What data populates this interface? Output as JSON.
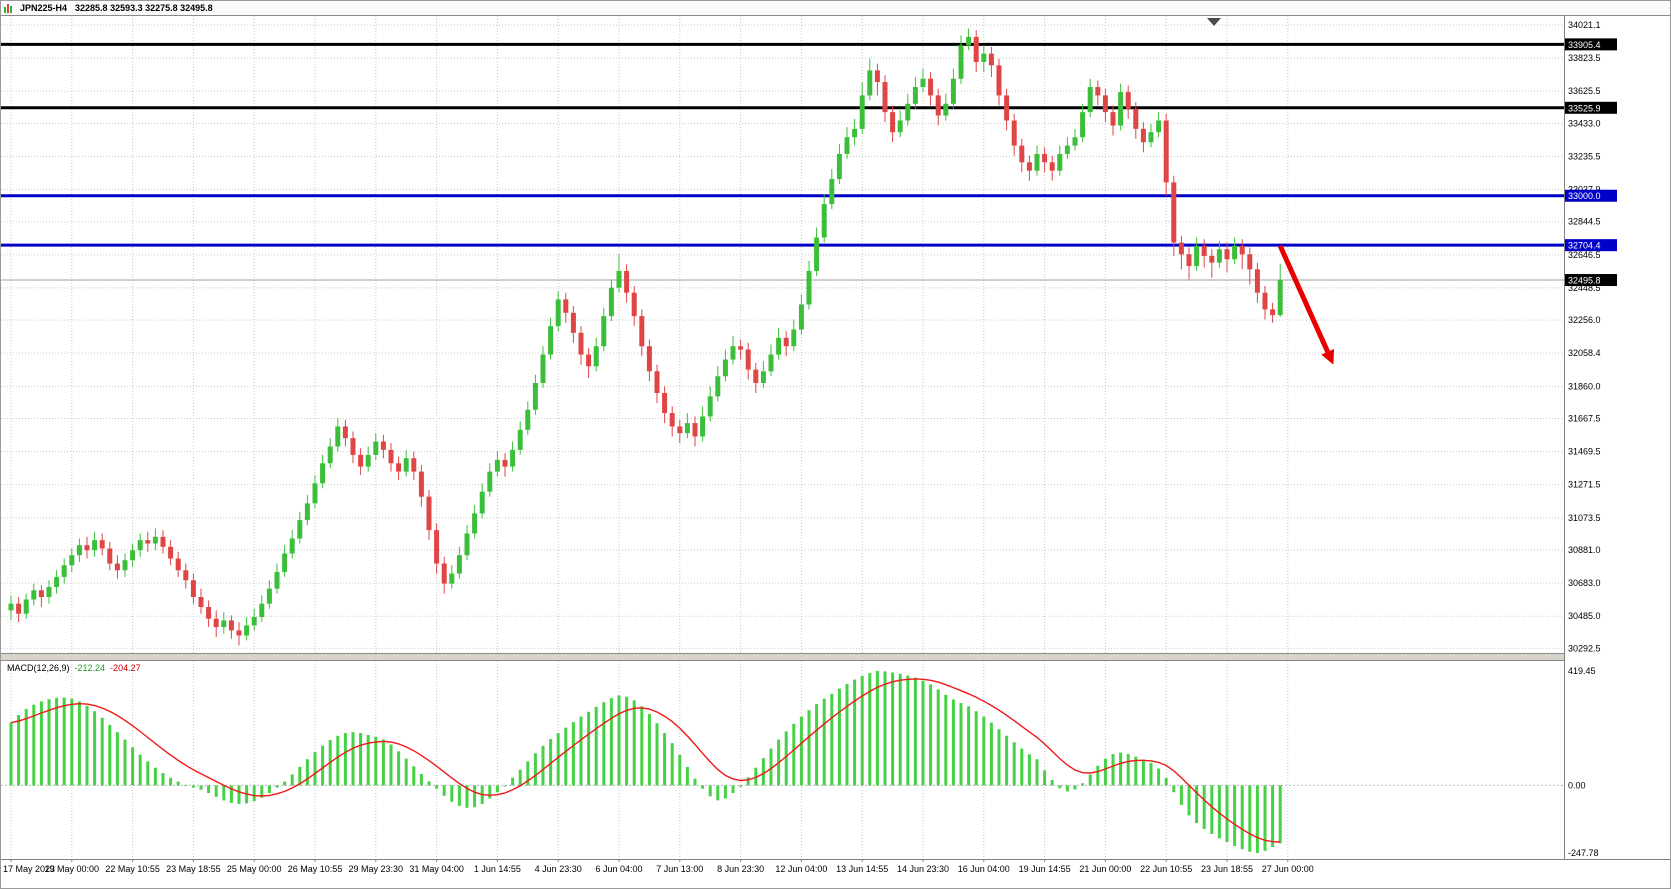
{
  "header": {
    "symbol_timeframe": "JPN225-H4",
    "ohlc_text": "32285.8 32593.3 32275.8 32495.8"
  },
  "macd_label": {
    "name": "MACD(12,26,9)",
    "macd_value": "-212.24",
    "signal_value": "-204.27"
  },
  "colors": {
    "bull": "#3bbf3b",
    "bear": "#e04545",
    "grid": "#c8c8c8",
    "level_black": "#000000",
    "level_blue": "#0000c8",
    "current_line": "#a0a0a0",
    "macd_hist": "#46d146",
    "macd_signal": "#f01818",
    "arrow": "#e80000"
  },
  "chart_data": {
    "type": "candlestick",
    "symbol": "JPN225",
    "timeframe": "H4",
    "price_axis": {
      "ticks": [
        "34021.1",
        "33823.5",
        "33625.5",
        "33433.0",
        "33235.5",
        "33037.9",
        "32844.5",
        "32646.5",
        "32448.5",
        "32256.0",
        "32058.4",
        "31860.0",
        "31667.5",
        "31469.5",
        "31271.5",
        "31073.5",
        "30881.0",
        "30683.0",
        "30485.0",
        "30292.5"
      ],
      "levels": [
        {
          "value": 33905.4,
          "label": "33905.4",
          "color": "#000000"
        },
        {
          "value": 33525.9,
          "label": "33525.9",
          "color": "#000000"
        },
        {
          "value": 33000.0,
          "label": "33000.0",
          "color": "#0000c8"
        },
        {
          "value": 32704.4,
          "label": "32704.4",
          "color": "#0000c8"
        }
      ],
      "current_price": 32495.8,
      "current_label": "32495.8"
    },
    "time_axis": {
      "candles_per_tick": 8,
      "labels": [
        "17 May 2023",
        "19 May 00:00",
        "22 May 10:55",
        "23 May 18:55",
        "25 May 00:00",
        "26 May 10:55",
        "29 May 23:30",
        "31 May 04:00",
        "1 Jun 14:55",
        "4 Jun 23:30",
        "6 Jun 04:00",
        "7 Jun 13:00",
        "8 Jun 23:30",
        "12 Jun 04:00",
        "13 Jun 14:55",
        "14 Jun 23:30",
        "16 Jun 04:00",
        "19 Jun 14:55",
        "21 Jun 00:00",
        "22 Jun 10:55",
        "23 Jun 18:55",
        "27 Jun 00:00"
      ]
    },
    "candles": [
      [
        30520,
        30610,
        30460,
        30560
      ],
      [
        30560,
        30600,
        30450,
        30500
      ],
      [
        30500,
        30620,
        30470,
        30585
      ],
      [
        30585,
        30680,
        30550,
        30640
      ],
      [
        30640,
        30670,
        30540,
        30600
      ],
      [
        30600,
        30700,
        30560,
        30660
      ],
      [
        30660,
        30760,
        30620,
        30720
      ],
      [
        30720,
        30830,
        30680,
        30790
      ],
      [
        30790,
        30890,
        30750,
        30850
      ],
      [
        30850,
        30950,
        30810,
        30910
      ],
      [
        30910,
        30960,
        30830,
        30880
      ],
      [
        30880,
        30990,
        30840,
        30940
      ],
      [
        30940,
        30980,
        30850,
        30890
      ],
      [
        30890,
        30930,
        30760,
        30800
      ],
      [
        30800,
        30850,
        30710,
        30760
      ],
      [
        30760,
        30860,
        30720,
        30820
      ],
      [
        30820,
        30920,
        30780,
        30880
      ],
      [
        30880,
        30980,
        30840,
        30940
      ],
      [
        30940,
        30990,
        30870,
        30920
      ],
      [
        30920,
        31010,
        30880,
        30960
      ],
      [
        30960,
        31000,
        30860,
        30900
      ],
      [
        30900,
        30940,
        30790,
        30830
      ],
      [
        30830,
        30870,
        30720,
        30760
      ],
      [
        30760,
        30800,
        30650,
        30700
      ],
      [
        30700,
        30740,
        30560,
        30600
      ],
      [
        30600,
        30650,
        30500,
        30540
      ],
      [
        30540,
        30580,
        30420,
        30470
      ],
      [
        30470,
        30520,
        30360,
        30420
      ],
      [
        30420,
        30510,
        30380,
        30460
      ],
      [
        30460,
        30490,
        30350,
        30400
      ],
      [
        30400,
        30450,
        30310,
        30370
      ],
      [
        30370,
        30480,
        30340,
        30430
      ],
      [
        30430,
        30530,
        30400,
        30480
      ],
      [
        30480,
        30610,
        30450,
        30560
      ],
      [
        30560,
        30700,
        30530,
        30650
      ],
      [
        30650,
        30800,
        30620,
        30750
      ],
      [
        30750,
        30910,
        30720,
        30860
      ],
      [
        30860,
        31000,
        30830,
        30950
      ],
      [
        30950,
        31110,
        30920,
        31060
      ],
      [
        31060,
        31210,
        31030,
        31160
      ],
      [
        31160,
        31330,
        31130,
        31280
      ],
      [
        31280,
        31450,
        31250,
        31400
      ],
      [
        31400,
        31550,
        31370,
        31500
      ],
      [
        31500,
        31670,
        31470,
        31620
      ],
      [
        31620,
        31660,
        31500,
        31550
      ],
      [
        31550,
        31590,
        31400,
        31450
      ],
      [
        31450,
        31490,
        31330,
        31380
      ],
      [
        31380,
        31500,
        31350,
        31450
      ],
      [
        31450,
        31580,
        31420,
        31530
      ],
      [
        31530,
        31570,
        31430,
        31480
      ],
      [
        31480,
        31520,
        31350,
        31400
      ],
      [
        31400,
        31440,
        31300,
        31350
      ],
      [
        31350,
        31480,
        31320,
        31430
      ],
      [
        31430,
        31470,
        31300,
        31350
      ],
      [
        31350,
        31390,
        31140,
        31200
      ],
      [
        31200,
        31240,
        30940,
        31000
      ],
      [
        31000,
        31040,
        30740,
        30800
      ],
      [
        30800,
        30840,
        30620,
        30680
      ],
      [
        30680,
        30790,
        30650,
        30740
      ],
      [
        30740,
        30900,
        30710,
        30850
      ],
      [
        30850,
        31030,
        30820,
        30980
      ],
      [
        30980,
        31150,
        30950,
        31100
      ],
      [
        31100,
        31280,
        31070,
        31230
      ],
      [
        31230,
        31400,
        31200,
        31350
      ],
      [
        31350,
        31470,
        31320,
        31420
      ],
      [
        31420,
        31460,
        31320,
        31380
      ],
      [
        31380,
        31530,
        31350,
        31480
      ],
      [
        31480,
        31650,
        31450,
        31600
      ],
      [
        31600,
        31770,
        31570,
        31720
      ],
      [
        31720,
        31930,
        31690,
        31880
      ],
      [
        31880,
        32100,
        31850,
        32050
      ],
      [
        32050,
        32270,
        32020,
        32220
      ],
      [
        32220,
        32430,
        32190,
        32380
      ],
      [
        32380,
        32420,
        32240,
        32300
      ],
      [
        32300,
        32340,
        32120,
        32180
      ],
      [
        32180,
        32220,
        31990,
        32050
      ],
      [
        32050,
        32090,
        31910,
        31980
      ],
      [
        31980,
        32150,
        31950,
        32100
      ],
      [
        32100,
        32330,
        32070,
        32280
      ],
      [
        32280,
        32500,
        32250,
        32450
      ],
      [
        32450,
        32650,
        32420,
        32550
      ],
      [
        32550,
        32590,
        32360,
        32420
      ],
      [
        32420,
        32460,
        32220,
        32280
      ],
      [
        32280,
        32320,
        32040,
        32100
      ],
      [
        32100,
        32140,
        31890,
        31950
      ],
      [
        31950,
        31990,
        31760,
        31820
      ],
      [
        31820,
        31860,
        31640,
        31700
      ],
      [
        31700,
        31740,
        31560,
        31620
      ],
      [
        31620,
        31660,
        31520,
        31580
      ],
      [
        31580,
        31700,
        31550,
        31640
      ],
      [
        31640,
        31680,
        31500,
        31560
      ],
      [
        31560,
        31740,
        31530,
        31680
      ],
      [
        31680,
        31860,
        31650,
        31800
      ],
      [
        31800,
        31980,
        31770,
        31920
      ],
      [
        31920,
        32080,
        31890,
        32020
      ],
      [
        32020,
        32160,
        31990,
        32100
      ],
      [
        32100,
        32140,
        32020,
        32080
      ],
      [
        32080,
        32120,
        31900,
        31960
      ],
      [
        31960,
        32000,
        31820,
        31880
      ],
      [
        31880,
        32010,
        31850,
        31950
      ],
      [
        31950,
        32110,
        31920,
        32050
      ],
      [
        32050,
        32210,
        32020,
        32150
      ],
      [
        32150,
        32190,
        32040,
        32100
      ],
      [
        32100,
        32260,
        32070,
        32200
      ],
      [
        32200,
        32410,
        32170,
        32350
      ],
      [
        32350,
        32610,
        32320,
        32550
      ],
      [
        32550,
        32810,
        32520,
        32750
      ],
      [
        32750,
        33010,
        32720,
        32950
      ],
      [
        32950,
        33160,
        32920,
        33100
      ],
      [
        33100,
        33310,
        33070,
        33250
      ],
      [
        33250,
        33410,
        33220,
        33350
      ],
      [
        33350,
        33460,
        33300,
        33400
      ],
      [
        33400,
        33680,
        33370,
        33600
      ],
      [
        33600,
        33820,
        33570,
        33750
      ],
      [
        33750,
        33790,
        33600,
        33680
      ],
      [
        33680,
        33720,
        33440,
        33500
      ],
      [
        33500,
        33540,
        33320,
        33380
      ],
      [
        33380,
        33510,
        33350,
        33450
      ],
      [
        33450,
        33610,
        33420,
        33550
      ],
      [
        33550,
        33710,
        33520,
        33650
      ],
      [
        33650,
        33760,
        33620,
        33700
      ],
      [
        33700,
        33740,
        33540,
        33600
      ],
      [
        33600,
        33640,
        33420,
        33480
      ],
      [
        33480,
        33610,
        33450,
        33550
      ],
      [
        33550,
        33760,
        33520,
        33700
      ],
      [
        33700,
        33960,
        33670,
        33900
      ],
      [
        33900,
        34000,
        33870,
        33950
      ],
      [
        33950,
        33990,
        33740,
        33800
      ],
      [
        33800,
        33900,
        33740,
        33850
      ],
      [
        33850,
        33890,
        33710,
        33780
      ],
      [
        33780,
        33820,
        33540,
        33600
      ],
      [
        33600,
        33640,
        33390,
        33450
      ],
      [
        33450,
        33490,
        33240,
        33300
      ],
      [
        33300,
        33340,
        33140,
        33200
      ],
      [
        33200,
        33240,
        33090,
        33150
      ],
      [
        33150,
        33300,
        33120,
        33250
      ],
      [
        33250,
        33290,
        33140,
        33200
      ],
      [
        33200,
        33240,
        33090,
        33150
      ],
      [
        33150,
        33300,
        33120,
        33250
      ],
      [
        33250,
        33350,
        33220,
        33300
      ],
      [
        33300,
        33400,
        33270,
        33350
      ],
      [
        33350,
        33550,
        33320,
        33500
      ],
      [
        33500,
        33700,
        33470,
        33650
      ],
      [
        33650,
        33690,
        33540,
        33600
      ],
      [
        33600,
        33640,
        33440,
        33500
      ],
      [
        33500,
        33540,
        33360,
        33420
      ],
      [
        33420,
        33670,
        33390,
        33620
      ],
      [
        33620,
        33660,
        33460,
        33520
      ],
      [
        33520,
        33560,
        33340,
        33400
      ],
      [
        33400,
        33440,
        33260,
        33320
      ],
      [
        33320,
        33430,
        33290,
        33380
      ],
      [
        33380,
        33500,
        33350,
        33450
      ],
      [
        33450,
        33490,
        33000,
        33080
      ],
      [
        33080,
        33120,
        32640,
        32720
      ],
      [
        32720,
        32760,
        32560,
        32650
      ],
      [
        32650,
        32690,
        32500,
        32580
      ],
      [
        32580,
        32750,
        32550,
        32700
      ],
      [
        32700,
        32740,
        32570,
        32640
      ],
      [
        32640,
        32680,
        32510,
        32600
      ],
      [
        32600,
        32730,
        32570,
        32680
      ],
      [
        32680,
        32720,
        32540,
        32620
      ],
      [
        32620,
        32750,
        32590,
        32700
      ],
      [
        32700,
        32740,
        32560,
        32650
      ],
      [
        32650,
        32690,
        32470,
        32560
      ],
      [
        32560,
        32600,
        32360,
        32420
      ],
      [
        32420,
        32460,
        32260,
        32320
      ],
      [
        32320,
        32360,
        32240,
        32286
      ],
      [
        32285.8,
        32593.3,
        32275.8,
        32495.8
      ]
    ],
    "macd": {
      "params": "12,26,9",
      "current": -212.24,
      "signal_current": -204.27,
      "axis": {
        "max": 419.45,
        "min": -247.78,
        "max_label": "419.45",
        "zero_label": "0.00",
        "min_label": "-247.78"
      },
      "histogram": [
        230,
        258,
        280,
        296,
        308,
        316,
        321,
        322,
        318,
        308,
        292,
        272,
        248,
        222,
        195,
        168,
        140,
        113,
        88,
        65,
        45,
        28,
        14,
        2,
        -8,
        -16,
        -28,
        -42,
        -55,
        -64,
        -68,
        -66,
        -58,
        -45,
        -28,
        -8,
        14,
        40,
        68,
        96,
        122,
        146,
        166,
        182,
        192,
        195,
        192,
        185,
        178,
        168,
        150,
        125,
        98,
        70,
        42,
        15,
        -12,
        -38,
        -60,
        -75,
        -82,
        -80,
        -68,
        -48,
        -25,
        0,
        28,
        58,
        88,
        118,
        145,
        170,
        192,
        212,
        232,
        252,
        270,
        288,
        305,
        320,
        330,
        325,
        312,
        290,
        262,
        228,
        192,
        155,
        112,
        68,
        25,
        -12,
        -40,
        -55,
        -48,
        -28,
        -5,
        30,
        65,
        100,
        135,
        168,
        198,
        226,
        252,
        276,
        298,
        318,
        336,
        355,
        372,
        388,
        402,
        412,
        419.45,
        418,
        414,
        409,
        403,
        395,
        384,
        370,
        352,
        332,
        315,
        302,
        290,
        272,
        252,
        230,
        206,
        182,
        158,
        135,
        114,
        96,
        55,
        20,
        -10,
        -22,
        -15,
        8,
        40,
        72,
        98,
        115,
        120,
        115,
        105,
        95,
        82,
        62,
        28,
        -25,
        -72,
        -110,
        -138,
        -160,
        -178,
        -194,
        -208,
        -222,
        -234,
        -243,
        -247.78,
        -240,
        -226,
        -212.24
      ]
    },
    "annotation_arrow": {
      "from": {
        "bar": 167,
        "price": 32700
      },
      "to": {
        "bar": 174,
        "price": 31990
      }
    }
  }
}
